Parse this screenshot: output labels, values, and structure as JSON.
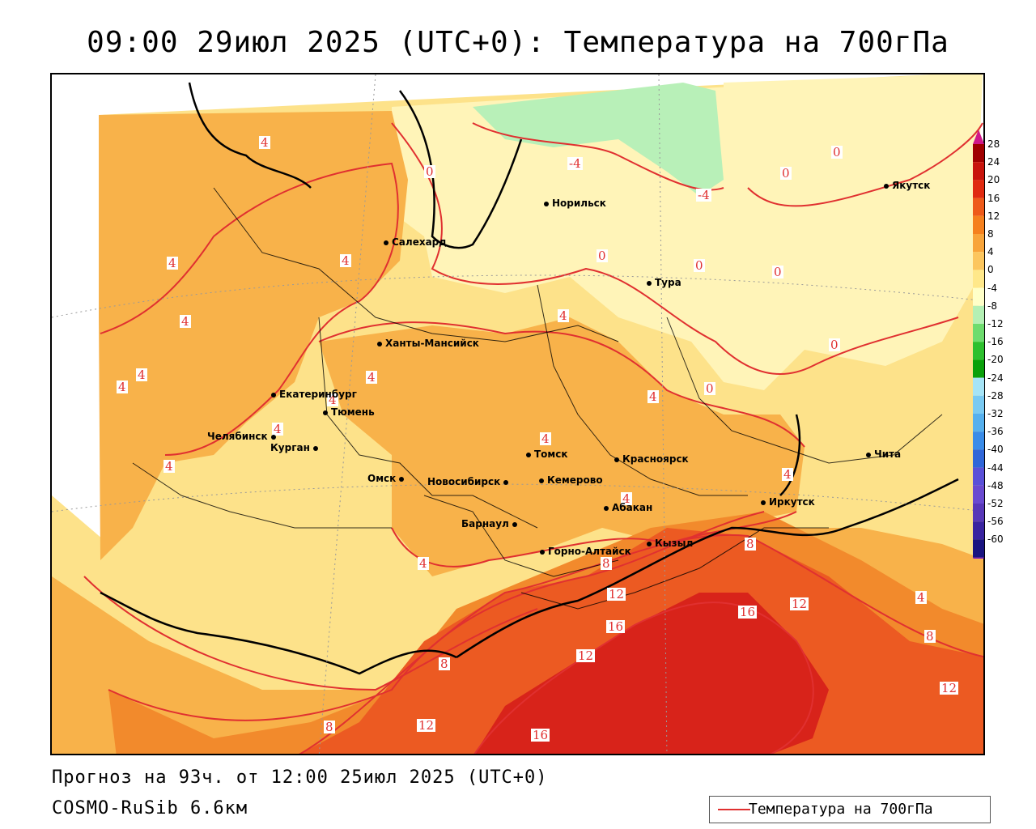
{
  "title": "09:00 29июл 2025 (UTC+0): Температура на 700гПа",
  "footer": {
    "forecast": "Прогноз на 93ч. от 12:00 25июл 2025 (UTC+0)",
    "model": "COSMO-RuSib 6.6км"
  },
  "series_legend": {
    "label": "Температура на 700гПа",
    "color": "#e03030"
  },
  "colors": {
    "contour": "#e03030",
    "border": "#000000",
    "band_0_4": "#fde28a",
    "band_4_8": "#f8b24a",
    "band_8_12": "#f28a2c",
    "band_12_16": "#ec5a22",
    "band_16_20": "#d8231a",
    "band_m4_0": "#fff4b8",
    "band_m8_m4": "#b8f0b8"
  },
  "scale": {
    "labels": [
      "28",
      "24",
      "20",
      "16",
      "12",
      "8",
      "4",
      "0",
      "-4",
      "-8",
      "-12",
      "-16",
      "-20",
      "-24",
      "-28",
      "-32",
      "-36",
      "-40",
      "-44",
      "-48",
      "-52",
      "-56",
      "-60"
    ],
    "colors": [
      "#a00000",
      "#c8140c",
      "#e02a10",
      "#ee5a1a",
      "#f5801e",
      "#f8a43a",
      "#fcc65e",
      "#ffe88a",
      "#ffffc8",
      "#b4f0b4",
      "#6edc6e",
      "#2ec02e",
      "#0aa00a",
      "#a6e4f6",
      "#7acaf2",
      "#56b0ee",
      "#3a8ce8",
      "#3066d8",
      "#5a50d8",
      "#6a4ad0",
      "#5838b8",
      "#3a24a0",
      "#1a1480"
    ]
  },
  "cities": [
    {
      "name": "Якутск"
    },
    {
      "name": "Норильск"
    },
    {
      "name": "Салехард"
    },
    {
      "name": "Тура"
    },
    {
      "name": "Ханты-Мансийск"
    },
    {
      "name": "Екатеринбург"
    },
    {
      "name": "Тюмень"
    },
    {
      "name": "Челябинск"
    },
    {
      "name": "Курган"
    },
    {
      "name": "Омск"
    },
    {
      "name": "Томск"
    },
    {
      "name": "Красноярск"
    },
    {
      "name": "Новосибирск"
    },
    {
      "name": "Кемерово"
    },
    {
      "name": "Барнаул"
    },
    {
      "name": "Абакан"
    },
    {
      "name": "Кызыл"
    },
    {
      "name": "Горно-Алтайск"
    },
    {
      "name": "Иркутск"
    },
    {
      "name": "Чита"
    }
  ],
  "contour_labels": [
    "4",
    "0",
    "-4",
    "-4",
    "0",
    "0",
    "0",
    "4",
    "4",
    "4",
    "4",
    "4",
    "4",
    "4",
    "4",
    "0",
    "0",
    "0",
    "0",
    "4",
    "4",
    "4",
    "4",
    "4",
    "4",
    "4",
    "8",
    "8",
    "12",
    "16",
    "16",
    "12",
    "12",
    "4",
    "8",
    "12",
    "12",
    "8",
    "16",
    "8"
  ]
}
